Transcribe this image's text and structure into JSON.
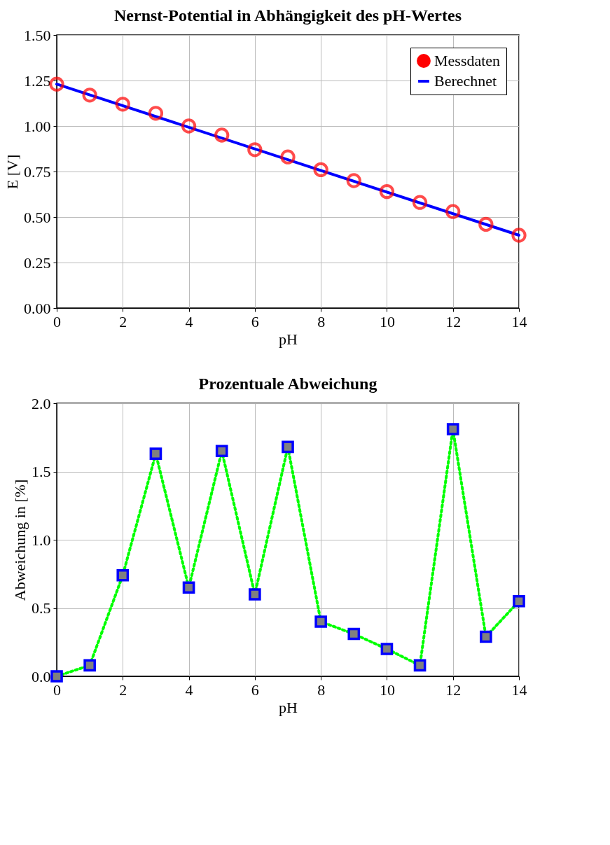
{
  "chart_data": [
    {
      "type": "line",
      "title": "Nernst-Potential in Abhängigkeit des pH-Wertes",
      "xlabel": "pH",
      "ylabel": "E [V]",
      "xlim": [
        0,
        14
      ],
      "xticks": [
        0,
        2,
        4,
        6,
        8,
        10,
        12,
        14
      ],
      "ylim": [
        0,
        1.5
      ],
      "yticks": [
        {
          "value": 0,
          "label": "0.00"
        },
        {
          "value": 0.25,
          "label": "0.25"
        },
        {
          "value": 0.5,
          "label": "0.50"
        },
        {
          "value": 0.75,
          "label": "0.75"
        },
        {
          "value": 1,
          "label": "1.00"
        },
        {
          "value": 1.25,
          "label": "1.25"
        },
        {
          "value": 1.5,
          "label": "1.50"
        }
      ],
      "grid": true,
      "legend": "top right",
      "series": [
        {
          "name": "Messdaten",
          "type": "scatter",
          "marker": "circle",
          "color": "#ff0000",
          "x": [
            0,
            1,
            2,
            3,
            4,
            5,
            6,
            7,
            8,
            9,
            10,
            11,
            12,
            13,
            14
          ],
          "values": [
            1.23,
            1.17,
            1.12,
            1.07,
            1.0,
            0.95,
            0.87,
            0.83,
            0.76,
            0.7,
            0.64,
            0.58,
            0.53,
            0.46,
            0.4
          ]
        },
        {
          "name": "Berechnet",
          "type": "line",
          "marker": "none",
          "line_style": "solid",
          "color": "#0000ff",
          "x": [
            0,
            14
          ],
          "values": [
            1.23,
            0.4
          ]
        }
      ]
    },
    {
      "type": "line",
      "title": "Prozentuale Abweichung",
      "xlabel": "pH",
      "ylabel": "Abweichung in [%]",
      "xlim": [
        0,
        14
      ],
      "xticks": [
        0,
        2,
        4,
        6,
        8,
        10,
        12,
        14
      ],
      "ylim": [
        0,
        2
      ],
      "yticks": [
        {
          "value": 0,
          "label": "0.0"
        },
        {
          "value": 0.5,
          "label": "0.5"
        },
        {
          "value": 1,
          "label": "1.0"
        },
        {
          "value": 1.5,
          "label": "1.5"
        },
        {
          "value": 2,
          "label": "2.0"
        }
      ],
      "grid": true,
      "legend": false,
      "series": [
        {
          "type": "line",
          "marker": "square",
          "line_style": "dotted",
          "color": "#00ff00",
          "colors": [
            "#0000ff",
            "#0000ff",
            "#0000ff",
            "#0000ff",
            "#0000ff",
            "#0000ff",
            "#0000ff",
            "#0000ff",
            "#0000ff",
            "#0000ff",
            "#0000ff",
            "#0000ff",
            "#0000ff",
            "#0000ff",
            "#0000ff"
          ],
          "x": [
            0,
            1,
            2,
            3,
            4,
            5,
            6,
            7,
            8,
            9,
            10,
            11,
            12,
            13,
            14
          ],
          "values": [
            0,
            0.08,
            0.74,
            1.63,
            0.65,
            1.65,
            0.6,
            1.68,
            0.4,
            0.31,
            0.2,
            0.08,
            1.81,
            0.29,
            0.55
          ]
        }
      ]
    }
  ]
}
